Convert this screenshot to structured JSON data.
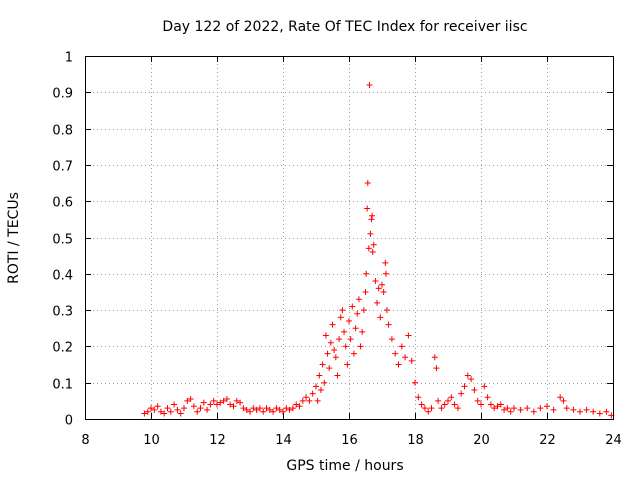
{
  "chart_data": {
    "type": "scatter",
    "title": "Day 122 of 2022, Rate Of TEC Index for receiver iisc",
    "xlabel": "GPS time / hours",
    "ylabel": "ROTI / TECUs",
    "xlim": [
      8,
      24
    ],
    "ylim": [
      0,
      1
    ],
    "xticks": [
      "8",
      "10",
      "12",
      "14",
      "16",
      "18",
      "20",
      "22",
      "24"
    ],
    "yticks": [
      "0",
      "0.1",
      "0.2",
      "0.3",
      "0.4",
      "0.5",
      "0.6",
      "0.7",
      "0.8",
      "0.9",
      "1"
    ],
    "grid": true,
    "marker": "+",
    "color": "#ff0000",
    "series": [
      {
        "name": "ROTI",
        "points": [
          [
            9.8,
            0.015
          ],
          [
            9.9,
            0.02
          ],
          [
            10.0,
            0.03
          ],
          [
            10.1,
            0.025
          ],
          [
            10.2,
            0.035
          ],
          [
            10.3,
            0.02
          ],
          [
            10.4,
            0.015
          ],
          [
            10.5,
            0.03
          ],
          [
            10.6,
            0.02
          ],
          [
            10.7,
            0.04
          ],
          [
            10.8,
            0.025
          ],
          [
            10.9,
            0.015
          ],
          [
            11.0,
            0.03
          ],
          [
            11.1,
            0.05
          ],
          [
            11.2,
            0.055
          ],
          [
            11.3,
            0.035
          ],
          [
            11.4,
            0.02
          ],
          [
            11.5,
            0.03
          ],
          [
            11.6,
            0.045
          ],
          [
            11.7,
            0.025
          ],
          [
            11.8,
            0.04
          ],
          [
            11.9,
            0.05
          ],
          [
            12.0,
            0.04
          ],
          [
            12.1,
            0.045
          ],
          [
            12.2,
            0.05
          ],
          [
            12.3,
            0.055
          ],
          [
            12.4,
            0.04
          ],
          [
            12.5,
            0.035
          ],
          [
            12.6,
            0.05
          ],
          [
            12.7,
            0.045
          ],
          [
            12.8,
            0.03
          ],
          [
            12.9,
            0.025
          ],
          [
            13.0,
            0.02
          ],
          [
            13.1,
            0.03
          ],
          [
            13.2,
            0.025
          ],
          [
            13.3,
            0.03
          ],
          [
            13.4,
            0.02
          ],
          [
            13.5,
            0.03
          ],
          [
            13.6,
            0.025
          ],
          [
            13.7,
            0.02
          ],
          [
            13.8,
            0.03
          ],
          [
            13.9,
            0.025
          ],
          [
            14.0,
            0.02
          ],
          [
            14.1,
            0.03
          ],
          [
            14.2,
            0.025
          ],
          [
            14.3,
            0.03
          ],
          [
            14.4,
            0.04
          ],
          [
            14.5,
            0.035
          ],
          [
            14.6,
            0.05
          ],
          [
            14.7,
            0.06
          ],
          [
            14.8,
            0.05
          ],
          [
            14.9,
            0.07
          ],
          [
            15.0,
            0.09
          ],
          [
            15.05,
            0.05
          ],
          [
            15.1,
            0.12
          ],
          [
            15.15,
            0.08
          ],
          [
            15.2,
            0.15
          ],
          [
            15.25,
            0.1
          ],
          [
            15.3,
            0.23
          ],
          [
            15.35,
            0.18
          ],
          [
            15.4,
            0.14
          ],
          [
            15.45,
            0.21
          ],
          [
            15.5,
            0.26
          ],
          [
            15.55,
            0.19
          ],
          [
            15.6,
            0.17
          ],
          [
            15.65,
            0.12
          ],
          [
            15.7,
            0.22
          ],
          [
            15.75,
            0.28
          ],
          [
            15.8,
            0.3
          ],
          [
            15.85,
            0.24
          ],
          [
            15.9,
            0.2
          ],
          [
            15.95,
            0.15
          ],
          [
            16.0,
            0.27
          ],
          [
            16.05,
            0.22
          ],
          [
            16.1,
            0.31
          ],
          [
            16.15,
            0.18
          ],
          [
            16.2,
            0.25
          ],
          [
            16.25,
            0.29
          ],
          [
            16.3,
            0.33
          ],
          [
            16.35,
            0.2
          ],
          [
            16.4,
            0.24
          ],
          [
            16.45,
            0.3
          ],
          [
            16.5,
            0.35
          ],
          [
            16.52,
            0.4
          ],
          [
            16.55,
            0.58
          ],
          [
            16.57,
            0.65
          ],
          [
            16.6,
            0.47
          ],
          [
            16.62,
            0.92
          ],
          [
            16.65,
            0.51
          ],
          [
            16.68,
            0.55
          ],
          [
            16.7,
            0.56
          ],
          [
            16.72,
            0.46
          ],
          [
            16.75,
            0.48
          ],
          [
            16.8,
            0.38
          ],
          [
            16.85,
            0.32
          ],
          [
            16.9,
            0.36
          ],
          [
            16.95,
            0.28
          ],
          [
            17.0,
            0.37
          ],
          [
            17.05,
            0.35
          ],
          [
            17.1,
            0.43
          ],
          [
            17.12,
            0.4
          ],
          [
            17.15,
            0.3
          ],
          [
            17.2,
            0.26
          ],
          [
            17.3,
            0.22
          ],
          [
            17.4,
            0.18
          ],
          [
            17.5,
            0.15
          ],
          [
            17.6,
            0.2
          ],
          [
            17.7,
            0.17
          ],
          [
            17.8,
            0.23
          ],
          [
            17.9,
            0.16
          ],
          [
            18.0,
            0.1
          ],
          [
            18.1,
            0.06
          ],
          [
            18.2,
            0.04
          ],
          [
            18.3,
            0.03
          ],
          [
            18.4,
            0.02
          ],
          [
            18.5,
            0.03
          ],
          [
            18.6,
            0.17
          ],
          [
            18.65,
            0.14
          ],
          [
            18.7,
            0.05
          ],
          [
            18.8,
            0.03
          ],
          [
            18.9,
            0.04
          ],
          [
            19.0,
            0.05
          ],
          [
            19.1,
            0.06
          ],
          [
            19.2,
            0.04
          ],
          [
            19.3,
            0.03
          ],
          [
            19.4,
            0.07
          ],
          [
            19.5,
            0.09
          ],
          [
            19.6,
            0.12
          ],
          [
            19.7,
            0.11
          ],
          [
            19.8,
            0.08
          ],
          [
            19.9,
            0.05
          ],
          [
            20.0,
            0.04
          ],
          [
            20.1,
            0.09
          ],
          [
            20.2,
            0.06
          ],
          [
            20.3,
            0.04
          ],
          [
            20.4,
            0.03
          ],
          [
            20.5,
            0.035
          ],
          [
            20.6,
            0.04
          ],
          [
            20.7,
            0.025
          ],
          [
            20.8,
            0.03
          ],
          [
            20.9,
            0.02
          ],
          [
            21.0,
            0.03
          ],
          [
            21.2,
            0.025
          ],
          [
            21.4,
            0.03
          ],
          [
            21.6,
            0.02
          ],
          [
            21.8,
            0.03
          ],
          [
            22.0,
            0.035
          ],
          [
            22.2,
            0.025
          ],
          [
            22.4,
            0.06
          ],
          [
            22.5,
            0.05
          ],
          [
            22.6,
            0.03
          ],
          [
            22.8,
            0.025
          ],
          [
            23.0,
            0.02
          ],
          [
            23.2,
            0.025
          ],
          [
            23.4,
            0.02
          ],
          [
            23.6,
            0.015
          ],
          [
            23.8,
            0.02
          ],
          [
            23.95,
            0.01
          ]
        ]
      }
    ]
  }
}
